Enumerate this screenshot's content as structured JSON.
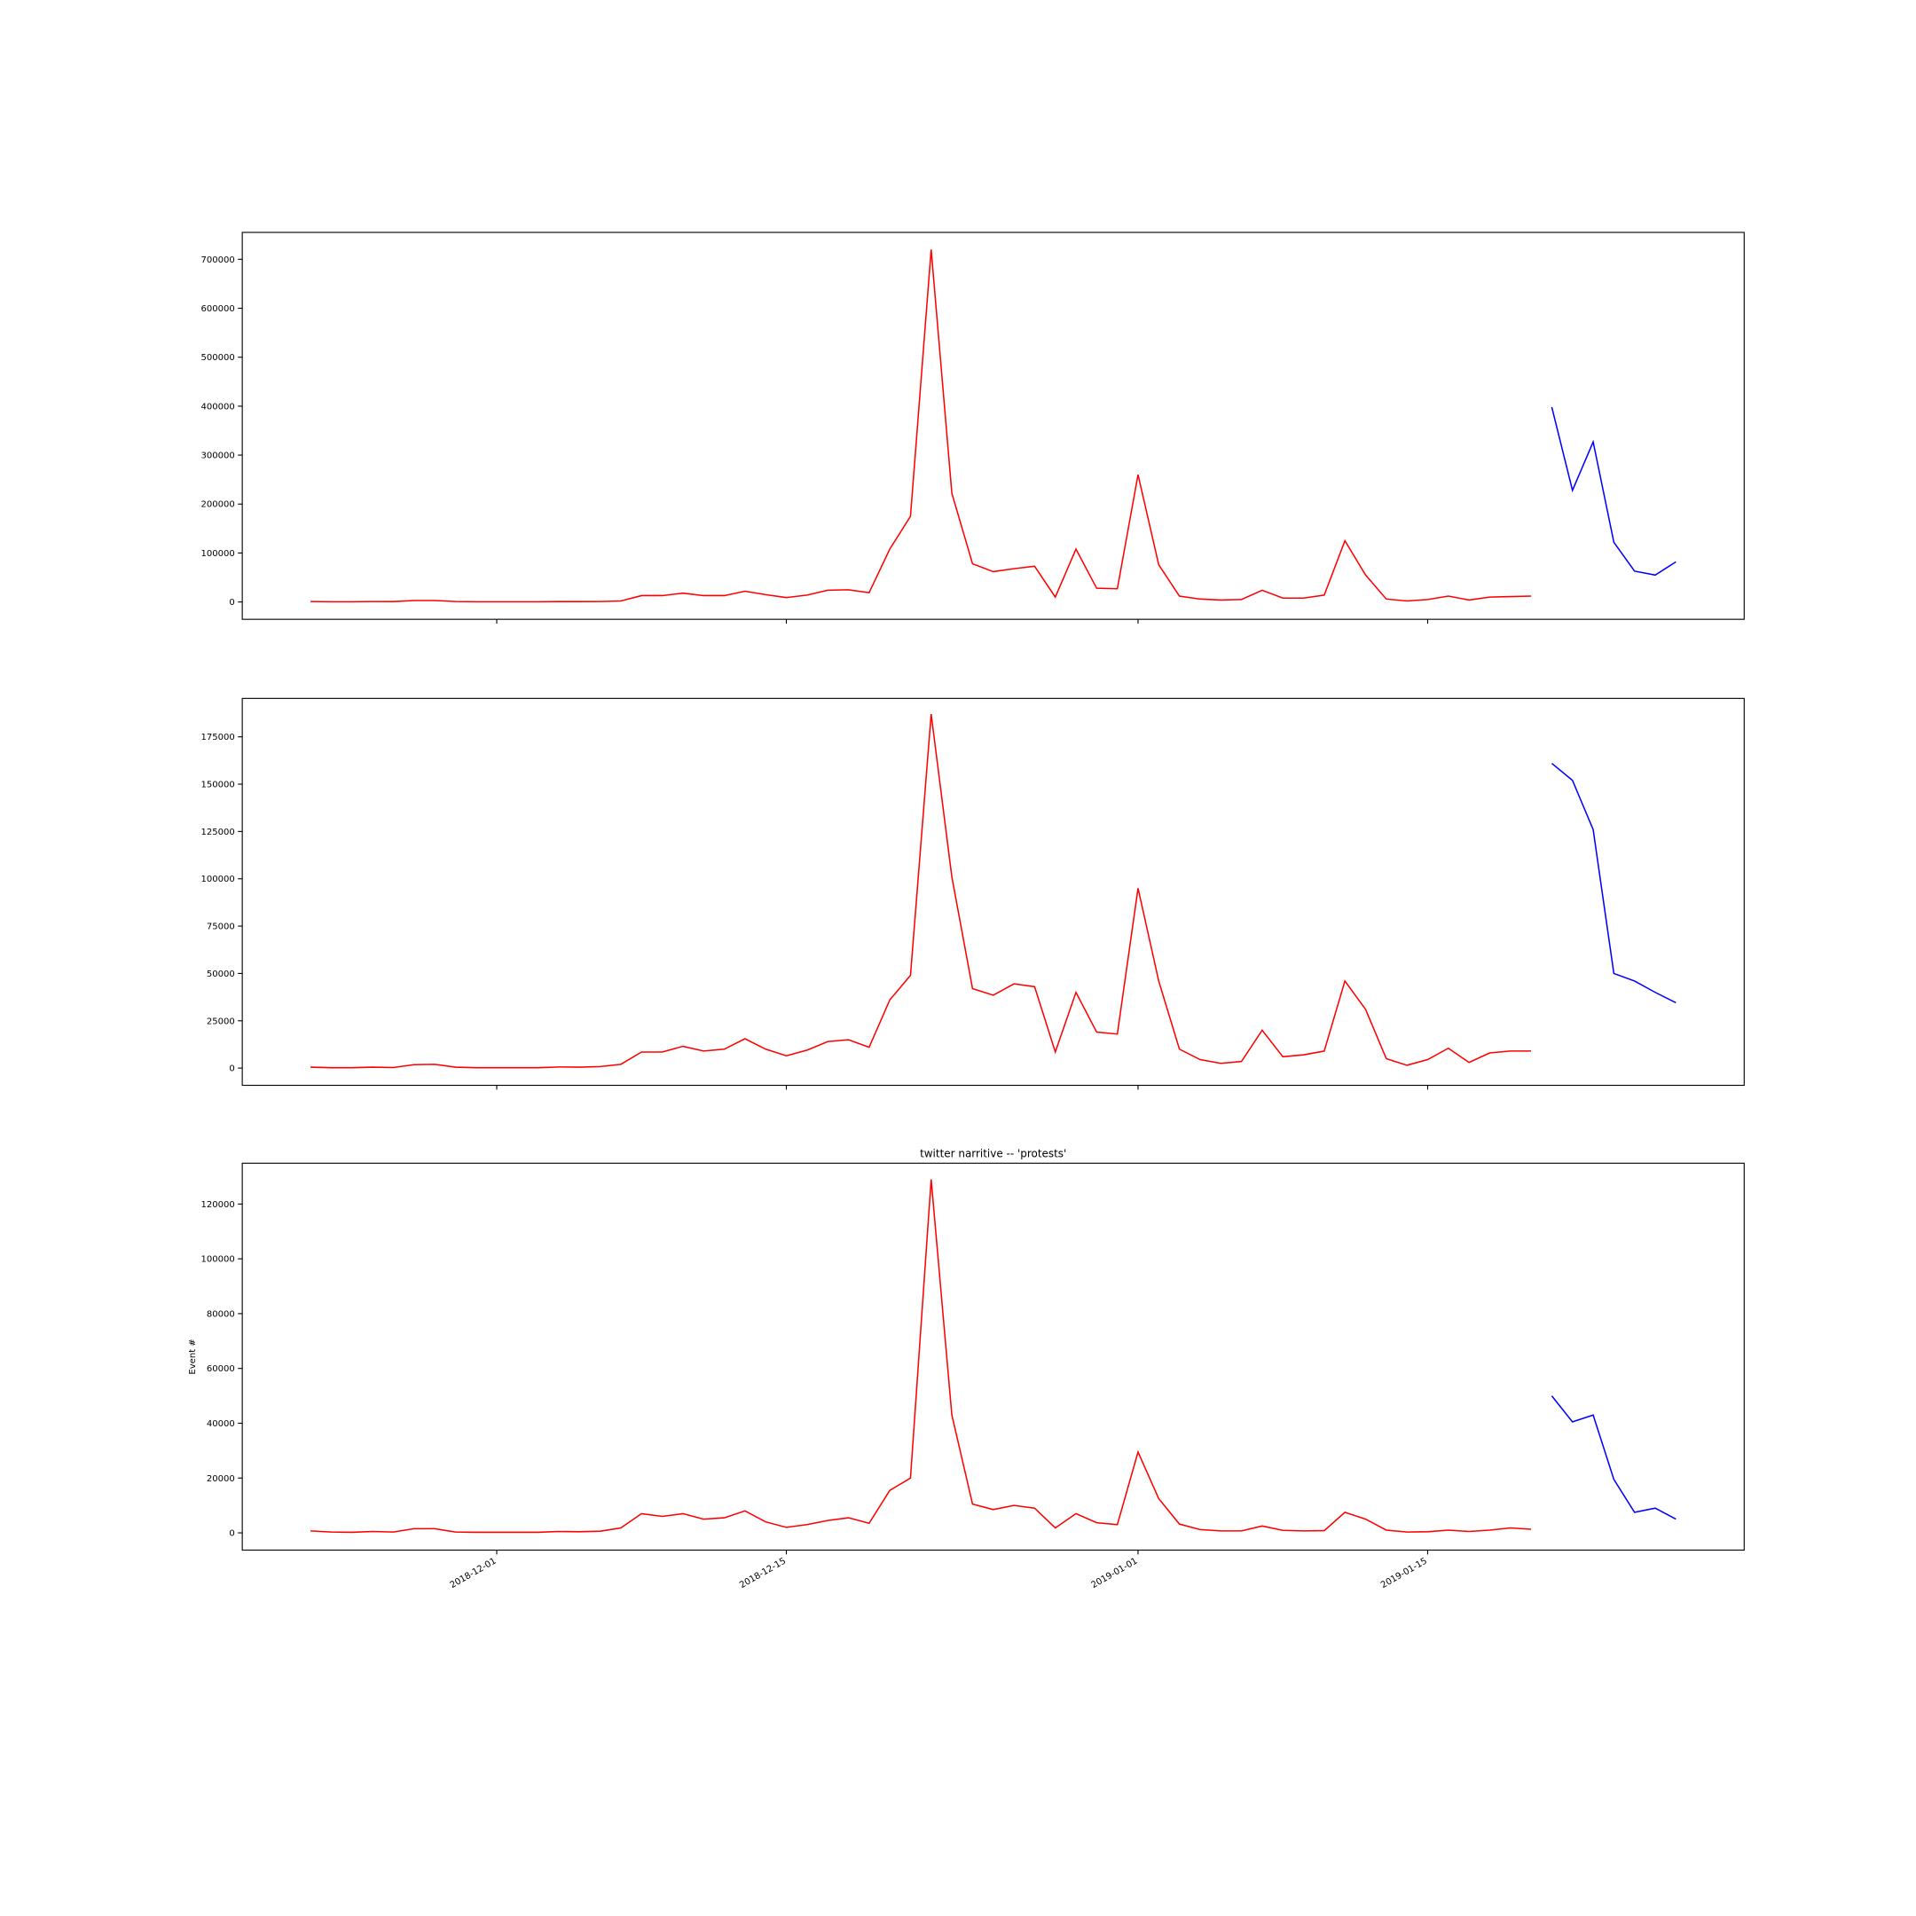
{
  "chart_data": [
    {
      "type": "line",
      "ylim": [
        -35400,
        755000
      ],
      "yticks": [
        0,
        100000,
        200000,
        300000,
        400000,
        500000,
        600000,
        700000
      ],
      "series": [
        {
          "color": "#ff0000",
          "values": [
            1000,
            500,
            500,
            1000,
            800,
            3000,
            3000,
            1000,
            500,
            500,
            500,
            500,
            800,
            800,
            1000,
            2000,
            13000,
            13000,
            18000,
            13000,
            13000,
            22000,
            15000,
            9000,
            14000,
            24000,
            25000,
            19000,
            108000,
            175000,
            720000,
            222000,
            78000,
            62000,
            68000,
            73000,
            10000,
            108000,
            28000,
            27000,
            260000,
            76000,
            12000,
            6000,
            4000,
            5000,
            24000,
            8000,
            8000,
            14000,
            125000,
            55000,
            6000,
            2000,
            5000,
            12000,
            4000,
            10000,
            11000,
            12000
          ]
        },
        {
          "color": "#0000ff",
          "values": [
            398000,
            228000,
            327000,
            122000,
            63000,
            55000,
            82000
          ]
        }
      ]
    },
    {
      "type": "line",
      "ylim": [
        -9100,
        195300
      ],
      "yticks": [
        0,
        25000,
        50000,
        75000,
        100000,
        125000,
        150000,
        175000
      ],
      "series": [
        {
          "color": "#ff0000",
          "values": [
            500,
            200,
            200,
            500,
            300,
            1800,
            2000,
            500,
            200,
            200,
            200,
            200,
            600,
            500,
            800,
            2000,
            8500,
            8500,
            11500,
            9000,
            10000,
            15500,
            10000,
            6500,
            9500,
            14000,
            15000,
            11000,
            36000,
            49000,
            187000,
            101000,
            42000,
            38500,
            44500,
            43000,
            8500,
            40000,
            19000,
            18000,
            95000,
            46000,
            10000,
            4500,
            2500,
            3500,
            20000,
            6000,
            7000,
            9000,
            46000,
            31000,
            5000,
            1500,
            4500,
            10500,
            3000,
            8000,
            9000,
            9000
          ]
        },
        {
          "color": "#0000ff",
          "values": [
            161000,
            152000,
            126000,
            50000,
            46000,
            40000,
            34500
          ]
        }
      ]
    },
    {
      "type": "line",
      "title": "twitter narritive -- 'protests'",
      "ylabel": "Event #",
      "xlim": [
        "2018-11-18T16:48:00Z",
        "2019-01-30T07:12:00Z"
      ],
      "xticks": [
        "2018-12-01",
        "2018-12-15",
        "2019-01-01",
        "2019-01-15"
      ],
      "ylim": [
        -6300,
        134900
      ],
      "yticks": [
        0,
        20000,
        40000,
        60000,
        80000,
        100000,
        120000
      ],
      "series": [
        {
          "color": "#ff0000",
          "x": [
            "2018-11-22",
            "2018-11-23",
            "2018-11-24",
            "2018-11-25",
            "2018-11-26",
            "2018-11-27",
            "2018-11-28",
            "2018-11-29",
            "2018-11-30",
            "2018-12-01",
            "2018-12-02",
            "2018-12-03",
            "2018-12-04",
            "2018-12-05",
            "2018-12-06",
            "2018-12-07",
            "2018-12-08",
            "2018-12-09",
            "2018-12-10",
            "2018-12-11",
            "2018-12-12",
            "2018-12-13",
            "2018-12-14",
            "2018-12-15",
            "2018-12-16",
            "2018-12-17",
            "2018-12-18",
            "2018-12-19",
            "2018-12-20",
            "2018-12-21",
            "2018-12-22",
            "2018-12-23",
            "2018-12-24",
            "2018-12-25",
            "2018-12-26",
            "2018-12-27",
            "2018-12-28",
            "2018-12-29",
            "2018-12-30",
            "2018-12-31",
            "2019-01-01",
            "2019-01-02",
            "2019-01-03",
            "2019-01-04",
            "2019-01-05",
            "2019-01-06",
            "2019-01-07",
            "2019-01-08",
            "2019-01-09",
            "2019-01-10",
            "2019-01-11",
            "2019-01-12",
            "2019-01-13",
            "2019-01-14",
            "2019-01-15",
            "2019-01-16",
            "2019-01-17",
            "2019-01-18",
            "2019-01-19",
            "2019-01-20"
          ],
          "values": [
            700,
            300,
            200,
            500,
            300,
            1500,
            1500,
            300,
            200,
            200,
            200,
            200,
            500,
            400,
            600,
            1800,
            7000,
            6000,
            7000,
            5000,
            5500,
            8000,
            4000,
            2000,
            3000,
            4500,
            5500,
            3500,
            15500,
            20000,
            129000,
            43000,
            10500,
            8500,
            10000,
            9000,
            1800,
            7000,
            3700,
            3000,
            29500,
            12500,
            3200,
            1200,
            700,
            700,
            2500,
            900,
            700,
            800,
            7500,
            5000,
            1000,
            300,
            400,
            1000,
            500,
            1000,
            1800,
            1300
          ]
        },
        {
          "color": "#0000ff",
          "x": [
            "2019-01-21",
            "2019-01-22",
            "2019-01-23",
            "2019-01-24",
            "2019-01-25",
            "2019-01-26",
            "2019-01-27"
          ],
          "values": [
            50000,
            40500,
            43000,
            19500,
            7500,
            9000,
            5000
          ]
        }
      ]
    }
  ]
}
